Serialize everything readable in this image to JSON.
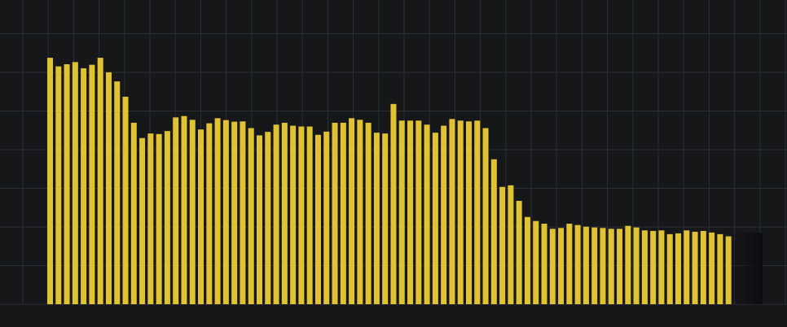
{
  "chart_data": {
    "type": "bar",
    "title": "",
    "xlabel": "",
    "ylabel": "",
    "grid": true,
    "legend": "none",
    "ylim": [
      0,
      100
    ],
    "colors": {
      "background": "#161719",
      "bar": "#e0c232",
      "grid": "#2c2f33",
      "fade": "#0c0c14"
    },
    "values": [
      91.8,
      88.6,
      89.4,
      90.2,
      87.9,
      89.2,
      91.8,
      86.4,
      83.0,
      77.3,
      67.6,
      61.9,
      63.6,
      63.4,
      64.5,
      69.6,
      70.1,
      68.7,
      65.1,
      67.4,
      69.3,
      68.6,
      68.0,
      68.1,
      65.6,
      62.9,
      64.2,
      66.9,
      67.6,
      66.5,
      66.2,
      66.2,
      63.1,
      64.3,
      67.6,
      67.6,
      69.3,
      68.7,
      67.6,
      63.9,
      63.6,
      74.6,
      68.4,
      68.4,
      68.4,
      66.9,
      63.9,
      66.5,
      69.0,
      68.4,
      68.1,
      68.4,
      65.6,
      54.0,
      43.7,
      44.3,
      38.5,
      32.5,
      31.0,
      30.0,
      28.1,
      28.4,
      30.0,
      29.5,
      28.9,
      28.6,
      28.4,
      28.1,
      28.1,
      29.2,
      28.6,
      27.5,
      27.3,
      27.5,
      26.1,
      26.4,
      27.5,
      27.0,
      27.3,
      26.7,
      26.1,
      25.3
    ]
  }
}
